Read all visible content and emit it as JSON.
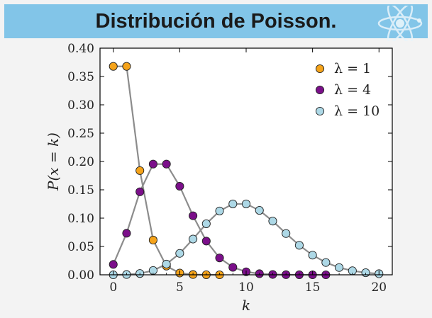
{
  "header": {
    "title": "Distribución de Poisson.",
    "icon": "atom-icon"
  },
  "chart_data": {
    "type": "line",
    "xlabel": "k",
    "ylabel": "P(x = k)",
    "xlim": [
      -1,
      21
    ],
    "ylim": [
      0,
      0.4
    ],
    "x_ticks": [
      0,
      5,
      10,
      15,
      20
    ],
    "y_ticks": [
      0.0,
      0.05,
      0.1,
      0.15,
      0.2,
      0.25,
      0.3,
      0.35,
      0.4
    ],
    "x_tick_labels": [
      "0",
      "5",
      "10",
      "15",
      "20"
    ],
    "y_tick_labels": [
      "0.00",
      "0.05",
      "0.10",
      "0.15",
      "0.20",
      "0.25",
      "0.30",
      "0.35",
      "0.40"
    ],
    "legend_position": "top-right",
    "grid": false,
    "line_color": "#8c8c8c",
    "series": [
      {
        "name": "λ = 1",
        "color": "#f5a31a",
        "x": [
          0,
          1,
          2,
          3,
          4,
          5,
          6,
          7,
          8
        ],
        "values": [
          0.3679,
          0.3679,
          0.1839,
          0.0613,
          0.0153,
          0.0031,
          0.0005,
          0.0001,
          0.0
        ]
      },
      {
        "name": "λ = 4",
        "color": "#7b0f8a",
        "x": [
          0,
          1,
          2,
          3,
          4,
          5,
          6,
          7,
          8,
          9,
          10,
          11,
          12,
          13,
          14,
          15,
          16
        ],
        "values": [
          0.0183,
          0.0733,
          0.1465,
          0.1954,
          0.1954,
          0.1563,
          0.1042,
          0.0595,
          0.0298,
          0.0132,
          0.0053,
          0.0019,
          0.0006,
          0.0002,
          0.0001,
          0.0,
          0.0
        ]
      },
      {
        "name": "λ = 10",
        "color": "#add8e6",
        "x": [
          0,
          1,
          2,
          3,
          4,
          5,
          6,
          7,
          8,
          9,
          10,
          11,
          12,
          13,
          14,
          15,
          16,
          17,
          18,
          19,
          20
        ],
        "values": [
          0.0,
          0.0005,
          0.0023,
          0.0076,
          0.0189,
          0.0378,
          0.0631,
          0.0901,
          0.1126,
          0.1251,
          0.1251,
          0.1137,
          0.0948,
          0.0729,
          0.0521,
          0.0347,
          0.0217,
          0.0128,
          0.0071,
          0.0037,
          0.0019
        ]
      }
    ]
  }
}
